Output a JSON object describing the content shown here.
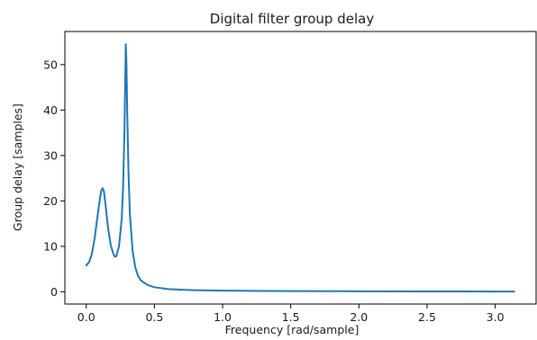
{
  "chart_data": {
    "type": "line",
    "title": "Digital filter group delay",
    "xlabel": "Frequency [rad/sample]",
    "ylabel": "Group delay [samples]",
    "xlim": [
      -0.157,
      3.3
    ],
    "ylim": [
      -2.7,
      57.3
    ],
    "xticks": [
      0.0,
      0.5,
      1.0,
      1.5,
      2.0,
      2.5,
      3.0
    ],
    "xtick_labels": [
      "0.0",
      "0.5",
      "1.0",
      "1.5",
      "2.0",
      "2.5",
      "3.0"
    ],
    "yticks": [
      0,
      10,
      20,
      30,
      40,
      50
    ],
    "ytick_labels": [
      "0",
      "10",
      "20",
      "30",
      "40",
      "50"
    ],
    "grid": false,
    "series": [
      {
        "color": "#1f77b4",
        "x": [
          0.0,
          0.02,
          0.04,
          0.06,
          0.08,
          0.1,
          0.11,
          0.12,
          0.13,
          0.14,
          0.16,
          0.18,
          0.2,
          0.21,
          0.22,
          0.24,
          0.26,
          0.27,
          0.28,
          0.285,
          0.29,
          0.295,
          0.3,
          0.31,
          0.32,
          0.34,
          0.36,
          0.38,
          0.4,
          0.45,
          0.5,
          0.6,
          0.7,
          0.8,
          1.0,
          1.2,
          1.5,
          2.0,
          2.5,
          3.0,
          3.14
        ],
        "y": [
          5.8,
          6.5,
          8.2,
          11.5,
          16.0,
          20.5,
          22.3,
          22.8,
          22.0,
          19.5,
          14.0,
          10.2,
          8.2,
          7.7,
          7.8,
          10.0,
          16.0,
          23.0,
          35.0,
          45.0,
          54.5,
          50.0,
          40.0,
          26.0,
          17.0,
          9.0,
          5.3,
          3.5,
          2.5,
          1.5,
          1.0,
          0.6,
          0.45,
          0.35,
          0.25,
          0.2,
          0.15,
          0.1,
          0.08,
          0.05,
          0.05
        ]
      }
    ]
  }
}
